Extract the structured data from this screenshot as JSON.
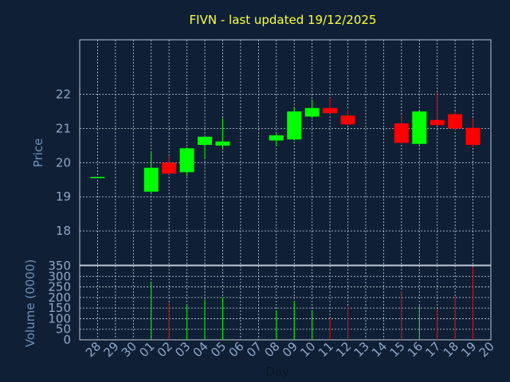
{
  "chart_data": {
    "type": "candlestick",
    "title": "FIVN - last updated 19/12/2025",
    "xlabel": "Day",
    "x_categories": [
      "28",
      "29",
      "30",
      "01",
      "02",
      "03",
      "04",
      "05",
      "06",
      "07",
      "08",
      "09",
      "10",
      "11",
      "12",
      "13",
      "14",
      "15",
      "16",
      "17",
      "18",
      "19",
      "20"
    ],
    "price_axis": {
      "ylabel": "Price",
      "ylim": [
        17,
        23.6
      ],
      "ticks": [
        18,
        19,
        20,
        21,
        22
      ]
    },
    "volume_axis": {
      "ylabel": "Volume (0000)",
      "ylim": [
        0,
        350
      ],
      "ticks": [
        0,
        50,
        100,
        150,
        200,
        250,
        300,
        350
      ]
    },
    "grid": true,
    "colors": {
      "background": "#0f2036",
      "up": "#00ff00",
      "down": "#ff0000",
      "title": "#ffff33",
      "tick": "#8fa7c8"
    },
    "candles": [
      {
        "day": "28",
        "open": 19.58,
        "high": 19.58,
        "low": 19.58,
        "close": 19.58,
        "volume": 0
      },
      {
        "day": "01",
        "open": 19.15,
        "high": 20.33,
        "low": 19.1,
        "close": 19.85,
        "volume": 275
      },
      {
        "day": "02",
        "open": 20.0,
        "high": 20.2,
        "low": 19.65,
        "close": 19.68,
        "volume": 175
      },
      {
        "day": "03",
        "open": 19.72,
        "high": 20.45,
        "low": 19.6,
        "close": 20.42,
        "volume": 165
      },
      {
        "day": "04",
        "open": 20.52,
        "high": 20.78,
        "low": 20.12,
        "close": 20.76,
        "volume": 190
      },
      {
        "day": "05",
        "open": 20.5,
        "high": 21.3,
        "low": 20.42,
        "close": 20.62,
        "volume": 200
      },
      {
        "day": "08",
        "open": 20.65,
        "high": 20.85,
        "low": 20.5,
        "close": 20.8,
        "volume": 140
      },
      {
        "day": "09",
        "open": 20.68,
        "high": 21.62,
        "low": 20.65,
        "close": 21.5,
        "volume": 180
      },
      {
        "day": "10",
        "open": 21.35,
        "high": 21.85,
        "low": 21.3,
        "close": 21.6,
        "volume": 140
      },
      {
        "day": "11",
        "open": 21.6,
        "high": 21.9,
        "low": 21.42,
        "close": 21.45,
        "volume": 100
      },
      {
        "day": "12",
        "open": 21.38,
        "high": 21.55,
        "low": 21.1,
        "close": 21.12,
        "volume": 160
      },
      {
        "day": "15",
        "open": 21.15,
        "high": 21.38,
        "low": 20.55,
        "close": 20.58,
        "volume": 230
      },
      {
        "day": "16",
        "open": 20.55,
        "high": 21.55,
        "low": 20.5,
        "close": 21.5,
        "volume": 160
      },
      {
        "day": "17",
        "open": 21.25,
        "high": 22.05,
        "low": 21.08,
        "close": 21.1,
        "volume": 145
      },
      {
        "day": "18",
        "open": 21.42,
        "high": 21.5,
        "low": 20.95,
        "close": 21.0,
        "volume": 205
      },
      {
        "day": "19",
        "open": 21.02,
        "high": 21.3,
        "low": 20.45,
        "close": 20.52,
        "volume": 345
      }
    ]
  }
}
